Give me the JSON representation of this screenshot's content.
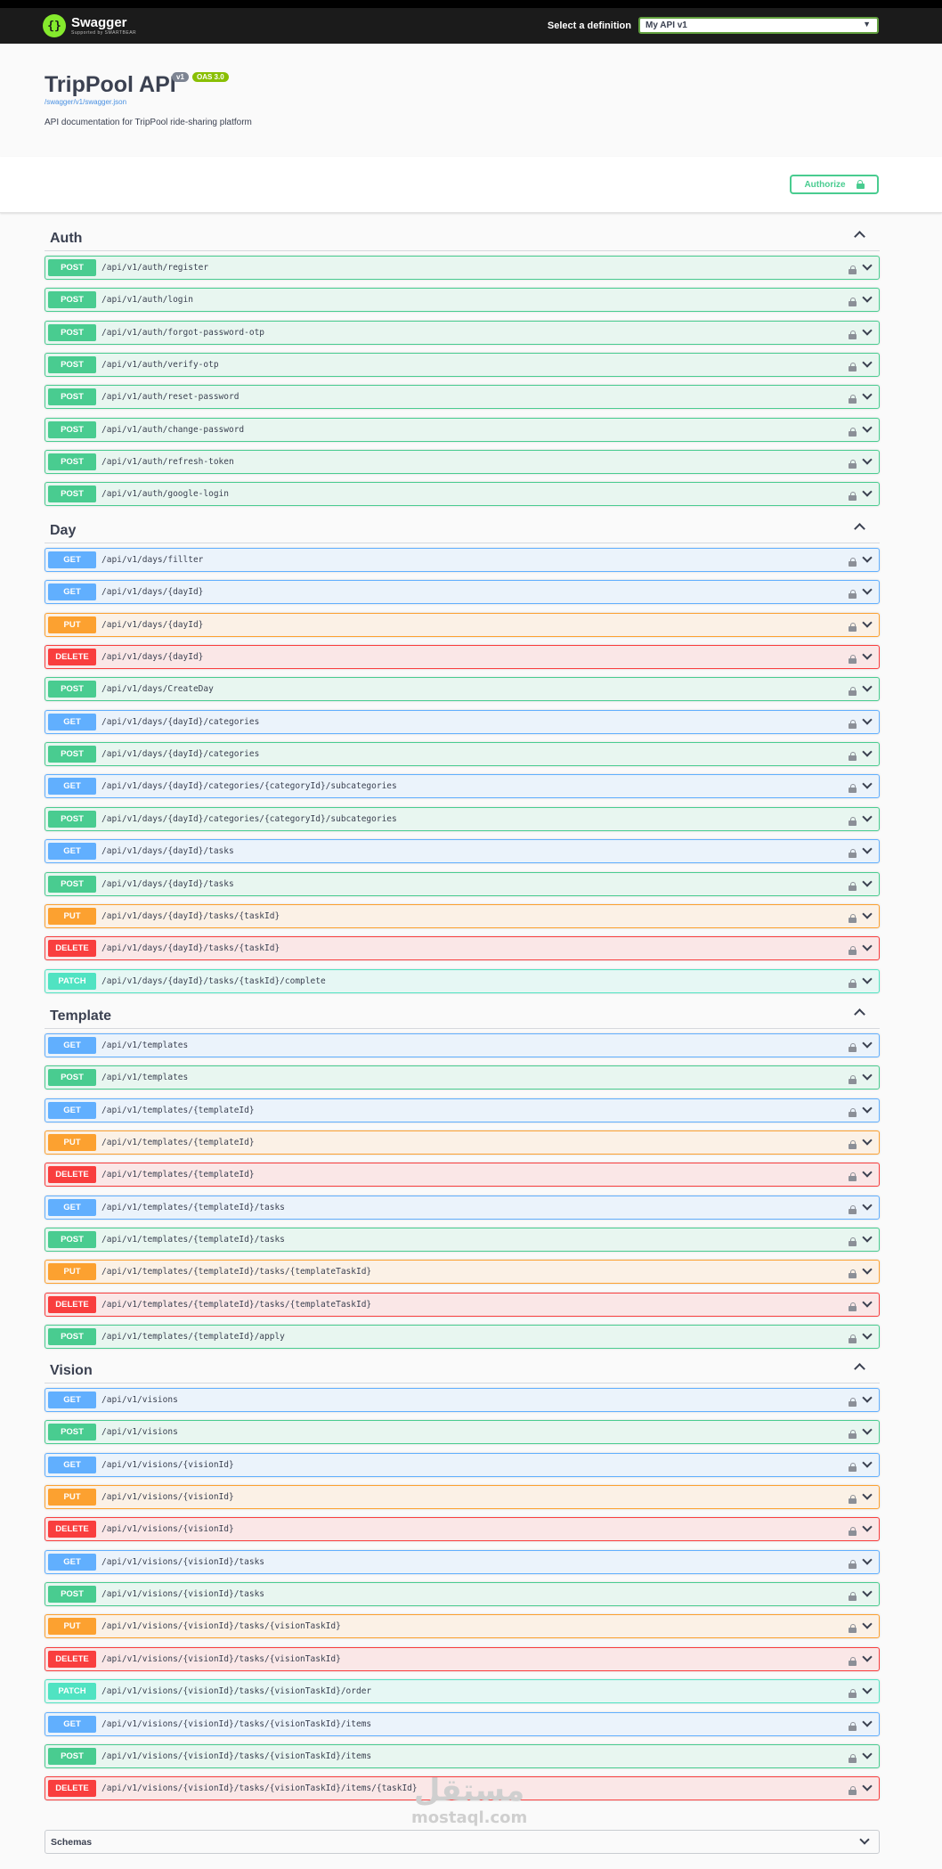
{
  "topbar": {
    "logo_text": "Swagger",
    "logo_sub": "Supported by SMARTBEAR",
    "definition_label": "Select a definition",
    "definition_value": "My API v1"
  },
  "info": {
    "title": "TripPool API",
    "version": "v1",
    "oas": "OAS 3.0",
    "link": "/swagger/v1/swagger.json",
    "description": "API documentation for TripPool ride-sharing platform"
  },
  "authorize_label": "Authorize",
  "tags": {
    "auth": "Auth",
    "day": "Day",
    "template": "Template",
    "vision": "Vision"
  },
  "operations": [
    {
      "method": "POST",
      "path": "/api/v1/auth/register"
    },
    {
      "method": "POST",
      "path": "/api/v1/auth/login"
    },
    {
      "method": "POST",
      "path": "/api/v1/auth/forgot-password-otp"
    },
    {
      "method": "POST",
      "path": "/api/v1/auth/verify-otp"
    },
    {
      "method": "POST",
      "path": "/api/v1/auth/reset-password"
    },
    {
      "method": "POST",
      "path": "/api/v1/auth/change-password"
    },
    {
      "method": "POST",
      "path": "/api/v1/auth/refresh-token"
    },
    {
      "method": "POST",
      "path": "/api/v1/auth/google-login"
    },
    {
      "method": "GET",
      "path": "/api/v1/days/fillter"
    },
    {
      "method": "GET",
      "path": "/api/v1/days/{dayId}"
    },
    {
      "method": "PUT",
      "path": "/api/v1/days/{dayId}"
    },
    {
      "method": "DELETE",
      "path": "/api/v1/days/{dayId}"
    },
    {
      "method": "POST",
      "path": "/api/v1/days/CreateDay"
    },
    {
      "method": "GET",
      "path": "/api/v1/days/{dayId}/categories"
    },
    {
      "method": "POST",
      "path": "/api/v1/days/{dayId}/categories"
    },
    {
      "method": "GET",
      "path": "/api/v1/days/{dayId}/categories/{categoryId}/subcategories"
    },
    {
      "method": "POST",
      "path": "/api/v1/days/{dayId}/categories/{categoryId}/subcategories"
    },
    {
      "method": "GET",
      "path": "/api/v1/days/{dayId}/tasks"
    },
    {
      "method": "POST",
      "path": "/api/v1/days/{dayId}/tasks"
    },
    {
      "method": "PUT",
      "path": "/api/v1/days/{dayId}/tasks/{taskId}"
    },
    {
      "method": "DELETE",
      "path": "/api/v1/days/{dayId}/tasks/{taskId}"
    },
    {
      "method": "PATCH",
      "path": "/api/v1/days/{dayId}/tasks/{taskId}/complete"
    },
    {
      "method": "GET",
      "path": "/api/v1/templates"
    },
    {
      "method": "POST",
      "path": "/api/v1/templates"
    },
    {
      "method": "GET",
      "path": "/api/v1/templates/{templateId}"
    },
    {
      "method": "PUT",
      "path": "/api/v1/templates/{templateId}"
    },
    {
      "method": "DELETE",
      "path": "/api/v1/templates/{templateId}"
    },
    {
      "method": "GET",
      "path": "/api/v1/templates/{templateId}/tasks"
    },
    {
      "method": "POST",
      "path": "/api/v1/templates/{templateId}/tasks"
    },
    {
      "method": "PUT",
      "path": "/api/v1/templates/{templateId}/tasks/{templateTaskId}"
    },
    {
      "method": "DELETE",
      "path": "/api/v1/templates/{templateId}/tasks/{templateTaskId}"
    },
    {
      "method": "POST",
      "path": "/api/v1/templates/{templateId}/apply"
    },
    {
      "method": "GET",
      "path": "/api/v1/visions"
    },
    {
      "method": "POST",
      "path": "/api/v1/visions"
    },
    {
      "method": "GET",
      "path": "/api/v1/visions/{visionId}"
    },
    {
      "method": "PUT",
      "path": "/api/v1/visions/{visionId}"
    },
    {
      "method": "DELETE",
      "path": "/api/v1/visions/{visionId}"
    },
    {
      "method": "GET",
      "path": "/api/v1/visions/{visionId}/tasks"
    },
    {
      "method": "POST",
      "path": "/api/v1/visions/{visionId}/tasks"
    },
    {
      "method": "PUT",
      "path": "/api/v1/visions/{visionId}/tasks/{visionTaskId}"
    },
    {
      "method": "DELETE",
      "path": "/api/v1/visions/{visionId}/tasks/{visionTaskId}"
    },
    {
      "method": "PATCH",
      "path": "/api/v1/visions/{visionId}/tasks/{visionTaskId}/order"
    },
    {
      "method": "GET",
      "path": "/api/v1/visions/{visionId}/tasks/{visionTaskId}/items"
    },
    {
      "method": "POST",
      "path": "/api/v1/visions/{visionId}/tasks/{visionTaskId}/items"
    },
    {
      "method": "DELETE",
      "path": "/api/v1/visions/{visionId}/tasks/{visionTaskId}/items/{taskId}"
    }
  ],
  "schemas_label": "Schemas",
  "watermark": {
    "arabic": "مستقل",
    "latin": "mostaql.com"
  },
  "colors": {
    "post": "#49cc90",
    "get": "#61affe",
    "put": "#fca130",
    "delete": "#f93e3e",
    "patch": "#50e3c2"
  }
}
